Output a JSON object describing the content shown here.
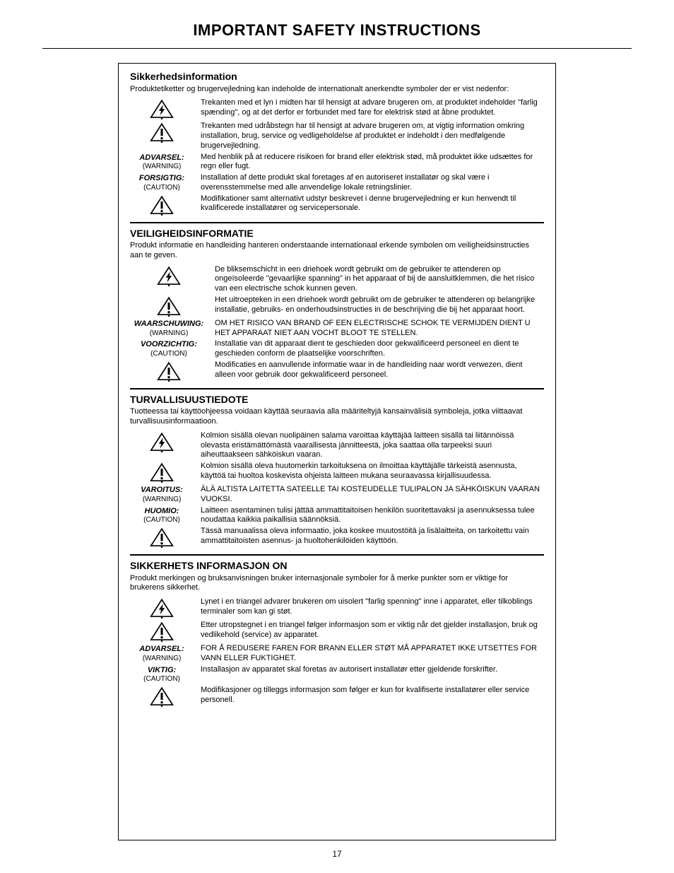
{
  "page": {
    "title": "IMPORTANT SAFETY INSTRUCTIONS",
    "number": "17"
  },
  "colors": {
    "text": "#000000",
    "background": "#ffffff",
    "border": "#000000"
  },
  "icons": {
    "bolt": "bolt-triangle",
    "bang": "exclaim-triangle"
  },
  "sections": [
    {
      "title": "Sikkerhedsinformation",
      "title_upper": false,
      "intro": "Produktetiketter og brugervejledning kan indeholde de internationalt anerkendte symboler der er vist nedenfor:",
      "rows": [
        {
          "icon": "bolt",
          "text": "Trekanten med et lyn i midten har til hensigt at advare brugeren om, at produktet indeholder \"farlig spænding\", og at det derfor er forbundet med fare for elektrisk stød at åbne produktet."
        },
        {
          "icon": "bang",
          "text": "Trekanten med udråbstegn har til hensigt at advare brugeren om, at vigtig information omkring installation, brug, service og vedligeholdelse af produktet er indeholdt i den medfølgende brugervejledning."
        },
        {
          "label": "ADVARSEL:",
          "sub": "(WARNING)",
          "text": "Med henblik på at reducere risikoen for brand eller elektrisk stød, må produktet ikke udsættes for regn eller fugt."
        },
        {
          "label": "FORSIGTIG:",
          "sub": "(CAUTION)",
          "text": "Installation af dette produkt skal foretages af en autoriseret installatør og skal være i overensstemmelse med alle anvendelige lokale retningslinier."
        },
        {
          "icon": "bang",
          "text": "Modifikationer samt alternativt udstyr beskrevet i denne brugervejledning er kun henvendt til kvalificerede installatører og servicepersonale."
        }
      ]
    },
    {
      "title": "VEILIGHEIDSINFORMATIE",
      "title_upper": true,
      "intro": "Produkt informatie en handleiding hanteren onderstaande internationaal erkende symbolen om veiligheidsinstructies aan te geven.",
      "wide_left": true,
      "rows": [
        {
          "icon": "bolt",
          "text": "De bliksemschicht in een driehoek wordt gebruikt om de gebruiker te attenderen op ongeïsoleerde \"gevaarlijke spanning\" in het apparaat of bij de aansluitklemmen, die het risico van een electrische schok kunnen geven."
        },
        {
          "icon": "bang",
          "text": "Het uitroepteken in een driehoek wordt gebruikt om de gebruiker te attenderen op belangrijke installatie, gebruiks- en onderhoudsinstructies in de beschrijving die bij het apparaat hoort."
        },
        {
          "label": "WAARSCHUWING:",
          "sub": "(WARNING)",
          "text": "OM HET RISICO VAN BRAND OF EEN ELECTRISCHE SCHOK TE VERMIJDEN DIENT U HET APPARAAT NIET AAN VOCHT BLOOT TE STELLEN."
        },
        {
          "label": "VOORZICHTIG:",
          "sub": "(CAUTION)",
          "text": "Installatie van dit apparaat dient te geschieden door gekwalificeerd personeel en dient te geschieden conform de plaatselijke voorschriften."
        },
        {
          "icon": "bang",
          "text": "Modificaties en aanvullende informatie waar in de handleiding naar wordt verwezen, dient alleen voor gebruik door gekwalificeerd personeel."
        }
      ]
    },
    {
      "title": "TURVALLISUUSTIEDOTE",
      "title_upper": true,
      "intro": "Tuotteessa tai käyttöohjeessa voidaan käyttää seuraavia alla määriteltyjä kansainvälisiä symboleja, jotka viittaavat turvallisuusinformaatioon.",
      "rows": [
        {
          "icon": "bolt",
          "text": "Kolmion sisällä olevan nuolipäinen salama varoittaa käyttäjää laitteen sisällä tai liitännöissä olevasta eristämättömästä  vaarallisesta jännitteestä, joka saattaa olla tarpeeksi suuri aiheuttaakseen sähköiskun vaaran."
        },
        {
          "icon": "bang",
          "text": "Kolmion sisällä oleva huutomerkin tarkoituksena on ilmoittaa käyttäjälle tärkeistä asennusta, käyttöä tai huoltoa koskevista ohjeista laitteen mukana seuraavassa kirjallisuudessa."
        },
        {
          "label": "VAROITUS:",
          "sub": "(WARNING)",
          "text": "ÄLÄ ALTISTA LAITETTA SATEELLE TAI KOSTEUDELLE TULIPALON JA SÄHKÖISKUN VAARAN VUOKSI.",
          "underline_lead": true
        },
        {
          "label": "HUOMIO:",
          "sub": "(CAUTION)",
          "text": "Laitteen asentaminen tulisi jättää ammattitaitoisen henkilön suoritettavaksi ja asennuksessa tulee noudattaa kaikkia paikallisia säännöksiä."
        },
        {
          "icon": "bang",
          "text": "Tässä manuaalissa oleva informaatio, joka koskee muutostöitä ja lisälaitteita, on tarkoitettu vain ammattitaitoisten asennus- ja huoltohenkilöiden käyttöön."
        }
      ]
    },
    {
      "title": "SIKKERHETS INFORMASJON ON",
      "title_upper": true,
      "intro": "Produkt merkingen og bruksanvisningen bruker internasjonale symboler for å merke punkter som er viktige for brukerens sikkerhet.",
      "rows": [
        {
          "icon": "bolt",
          "text": "Lynet i en triangel advarer brukeren om uisolert \"farlig spenning\" inne i apparatet, eller tilkoblings terminaler som kan gi støt."
        },
        {
          "icon": "bang",
          "text": "Etter utropstegnet i en triangel følger informasjon som er viktig når det gjelder installasjon, bruk og vedlikehold (service) av apparatet."
        },
        {
          "label": "ADVARSEL:",
          "sub": "(WARNING)",
          "text": "FOR Å REDUSERE FAREN FOR BRANN ELLER STØT MÅ APPARATET IKKE UTSETTES FOR VANN ELLER FUKTIGHET.",
          "underline_lead": true
        },
        {
          "label": "VIKTIG:",
          "sub": "(CAUTION)",
          "text": "Installasjon av apparatet skal foretas av autorisert installatør etter gjeldende forskrifter."
        },
        {
          "icon": "bang",
          "text": "Modifikasjoner og tilleggs informasjon som følger er kun for kvalifiserte installatører eller service personell."
        }
      ]
    }
  ]
}
